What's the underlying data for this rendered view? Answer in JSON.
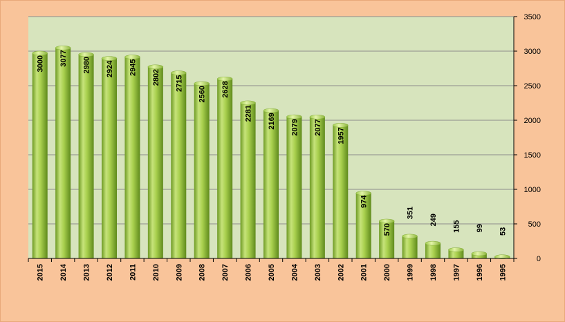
{
  "chart_data": {
    "type": "bar",
    "title": "",
    "xlabel": "",
    "ylabel": "",
    "categories": [
      "2015",
      "2014",
      "2013",
      "2012",
      "2011",
      "2010",
      "2009",
      "2008",
      "2007",
      "2006",
      "2005",
      "2004",
      "2003",
      "2002",
      "2001",
      "2000",
      "1999",
      "1998",
      "1997",
      "1996",
      "1995"
    ],
    "values": [
      3000,
      3077,
      2980,
      2924,
      2945,
      2802,
      2715,
      2560,
      2628,
      2281,
      2169,
      2079,
      2077,
      1957,
      974,
      570,
      351,
      249,
      155,
      99,
      53
    ],
    "ylim": [
      0,
      3500
    ],
    "yticks": [
      0,
      500,
      1000,
      1500,
      2000,
      2500,
      3000,
      3500
    ],
    "y_axis_side": "right",
    "x_tick_rotation": "vertical",
    "data_labels": "vertical",
    "grid": true,
    "legend": "none",
    "colors": {
      "page_background": "#F9C49A",
      "plot_background": "#D7E4BD",
      "bar_light": "#C6E37A",
      "bar_mid": "#9BC53D",
      "bar_dark": "#6E9A24",
      "gridline": "#8C8C8C"
    }
  }
}
